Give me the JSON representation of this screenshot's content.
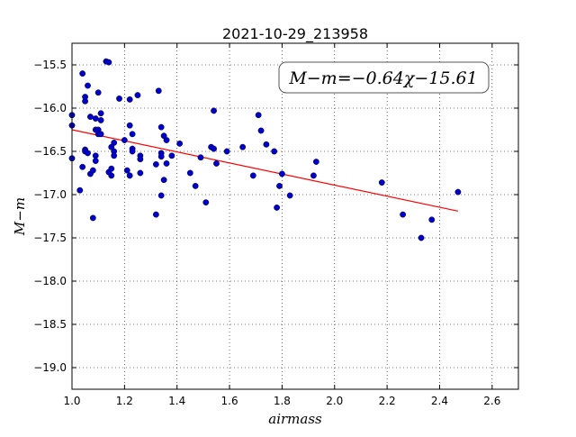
{
  "chart_data": {
    "type": "scatter",
    "title": "2021-10-29_213958",
    "xlabel": "airmass",
    "ylabel": "M−m",
    "xlim": [
      1.0,
      2.7
    ],
    "ylim": [
      -19.25,
      -15.25
    ],
    "y_inverted": true,
    "grid": true,
    "x_ticks": [
      1.0,
      1.2,
      1.4,
      1.6,
      1.8,
      2.0,
      2.2,
      2.4,
      2.6
    ],
    "x_tick_labels": [
      "1.0",
      "1.2",
      "1.4",
      "1.6",
      "1.8",
      "2.0",
      "2.2",
      "2.4",
      "2.6"
    ],
    "y_ticks": [
      -15.5,
      -16.0,
      -16.5,
      -17.0,
      -17.5,
      -18.0,
      -18.5,
      -19.0
    ],
    "y_tick_labels": [
      "−15.5",
      "−16.0",
      "−16.5",
      "−17.0",
      "−17.5",
      "−18.0",
      "−18.5",
      "−19.0"
    ],
    "annotation": "M−m=−0.64χ−15.61",
    "fit": {
      "slope": -0.64,
      "intercept": -15.61,
      "x_range": [
        1.0,
        2.47
      ],
      "color": "#ff0000"
    },
    "point_color": "#0000cc",
    "points": [
      [
        1.0,
        -16.08
      ],
      [
        1.0,
        -16.2
      ],
      [
        1.0,
        -16.58
      ],
      [
        1.03,
        -16.95
      ],
      [
        1.04,
        -16.68
      ],
      [
        1.04,
        -15.6
      ],
      [
        1.05,
        -15.87
      ],
      [
        1.05,
        -15.92
      ],
      [
        1.05,
        -16.48
      ],
      [
        1.05,
        -16.5
      ],
      [
        1.06,
        -15.74
      ],
      [
        1.06,
        -16.52
      ],
      [
        1.07,
        -16.1
      ],
      [
        1.07,
        -16.76
      ],
      [
        1.08,
        -16.72
      ],
      [
        1.08,
        -17.27
      ],
      [
        1.09,
        -16.12
      ],
      [
        1.09,
        -16.25
      ],
      [
        1.09,
        -16.55
      ],
      [
        1.09,
        -16.61
      ],
      [
        1.1,
        -16.25
      ],
      [
        1.1,
        -15.82
      ],
      [
        1.1,
        -16.3
      ],
      [
        1.11,
        -16.06
      ],
      [
        1.11,
        -16.14
      ],
      [
        1.11,
        -16.3
      ],
      [
        1.13,
        -15.46
      ],
      [
        1.14,
        -15.47
      ],
      [
        1.14,
        -16.74
      ],
      [
        1.15,
        -16.45
      ],
      [
        1.15,
        -16.7
      ],
      [
        1.15,
        -16.78
      ],
      [
        1.16,
        -16.4
      ],
      [
        1.16,
        -16.5
      ],
      [
        1.16,
        -16.55
      ],
      [
        1.18,
        -15.89
      ],
      [
        1.2,
        -16.37
      ],
      [
        1.21,
        -16.72
      ],
      [
        1.22,
        -15.9
      ],
      [
        1.22,
        -16.2
      ],
      [
        1.22,
        -16.78
      ],
      [
        1.23,
        -16.3
      ],
      [
        1.23,
        -16.47
      ],
      [
        1.23,
        -16.5
      ],
      [
        1.25,
        -15.85
      ],
      [
        1.26,
        -16.55
      ],
      [
        1.26,
        -16.59
      ],
      [
        1.26,
        -16.75
      ],
      [
        1.32,
        -17.23
      ],
      [
        1.32,
        -16.65
      ],
      [
        1.33,
        -15.8
      ],
      [
        1.34,
        -16.22
      ],
      [
        1.34,
        -16.52
      ],
      [
        1.34,
        -16.56
      ],
      [
        1.34,
        -17.01
      ],
      [
        1.35,
        -16.32
      ],
      [
        1.35,
        -16.83
      ],
      [
        1.36,
        -16.37
      ],
      [
        1.36,
        -16.64
      ],
      [
        1.38,
        -16.55
      ],
      [
        1.41,
        -16.41
      ],
      [
        1.45,
        -16.75
      ],
      [
        1.47,
        -16.9
      ],
      [
        1.49,
        -16.57
      ],
      [
        1.51,
        -17.09
      ],
      [
        1.53,
        -16.45
      ],
      [
        1.54,
        -16.03
      ],
      [
        1.54,
        -16.47
      ],
      [
        1.55,
        -16.64
      ],
      [
        1.59,
        -16.5
      ],
      [
        1.65,
        -16.45
      ],
      [
        1.69,
        -16.78
      ],
      [
        1.71,
        -16.08
      ],
      [
        1.72,
        -16.26
      ],
      [
        1.74,
        -16.42
      ],
      [
        1.77,
        -16.5
      ],
      [
        1.78,
        -17.15
      ],
      [
        1.79,
        -16.9
      ],
      [
        1.8,
        -16.76
      ],
      [
        1.83,
        -17.01
      ],
      [
        1.92,
        -16.78
      ],
      [
        1.93,
        -16.62
      ],
      [
        2.18,
        -16.86
      ],
      [
        2.26,
        -17.23
      ],
      [
        2.33,
        -17.5
      ],
      [
        2.37,
        -17.29
      ],
      [
        2.47,
        -16.97
      ]
    ]
  }
}
